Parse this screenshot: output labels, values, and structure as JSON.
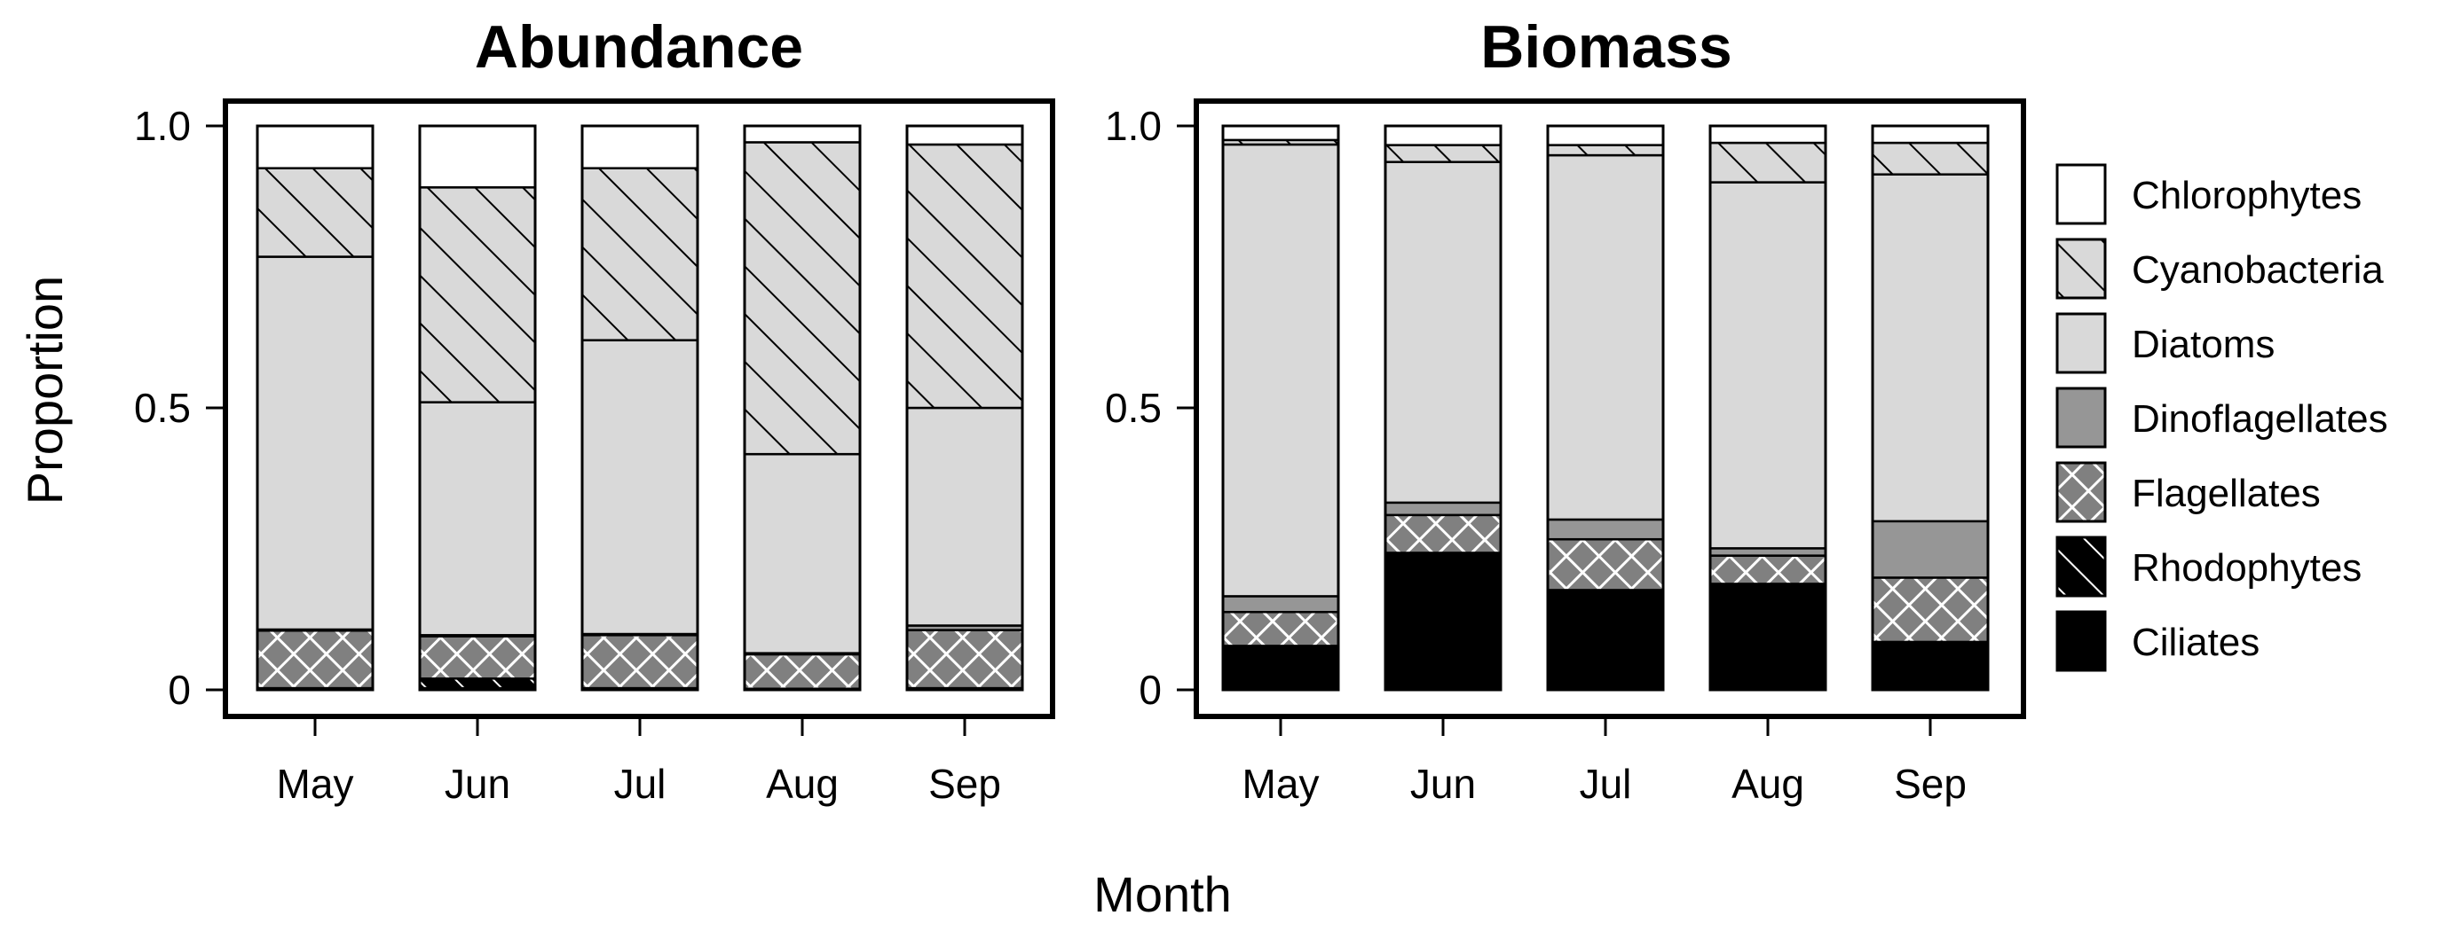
{
  "figure": {
    "ylabel": "Proportion",
    "xlabel": "Month"
  },
  "legend": {
    "position": "right",
    "items": [
      {
        "name": "Chlorophytes",
        "fill": "#ffffff",
        "pattern": "none"
      },
      {
        "name": "Cyanobacteria",
        "fill": "#d9d9d9",
        "pattern": "diagonal-hatch"
      },
      {
        "name": "Diatoms",
        "fill": "#d9d9d9",
        "pattern": "none"
      },
      {
        "name": "Dinoflagellates",
        "fill": "#969696",
        "pattern": "none"
      },
      {
        "name": "Flagellates",
        "fill": "#808080",
        "pattern": "crosshatch"
      },
      {
        "name": "Rhodophytes",
        "fill": "#000000",
        "pattern": "white-diagonal-hatch"
      },
      {
        "name": "Ciliates",
        "fill": "#000000",
        "pattern": "none"
      }
    ]
  },
  "chart_data": [
    {
      "type": "bar",
      "stacked": true,
      "title": "Abundance",
      "xlabel": "Month",
      "ylabel": "Proportion",
      "ylim": [
        0,
        1
      ],
      "yticks": [
        0,
        0.5,
        1.0
      ],
      "ytick_labels": [
        "0",
        "0.5",
        "1.0"
      ],
      "categories": [
        "May",
        "Jun",
        "Jul",
        "Aug",
        "Sep"
      ],
      "series": [
        {
          "name": "Ciliates",
          "values": [
            0.003,
            0.003,
            0.003,
            0.002,
            0.003
          ]
        },
        {
          "name": "Rhodophytes",
          "values": [
            0.0,
            0.017,
            0.0,
            0.0,
            0.0
          ]
        },
        {
          "name": "Flagellates",
          "values": [
            0.102,
            0.075,
            0.094,
            0.061,
            0.103
          ]
        },
        {
          "name": "Dinoflagellates",
          "values": [
            0.002,
            0.002,
            0.002,
            0.002,
            0.008
          ]
        },
        {
          "name": "Diatoms",
          "values": [
            0.661,
            0.413,
            0.521,
            0.353,
            0.386
          ]
        },
        {
          "name": "Cyanobacteria",
          "values": [
            0.157,
            0.381,
            0.305,
            0.553,
            0.467
          ]
        },
        {
          "name": "Chlorophytes",
          "values": [
            0.075,
            0.109,
            0.075,
            0.029,
            0.033
          ]
        }
      ]
    },
    {
      "type": "bar",
      "stacked": true,
      "title": "Biomass",
      "xlabel": "Month",
      "ylabel": "Proportion",
      "ylim": [
        0,
        1
      ],
      "yticks": [
        0,
        0.5,
        1.0
      ],
      "ytick_labels": [
        "0",
        "0.5",
        "1.0"
      ],
      "categories": [
        "May",
        "Jun",
        "Jul",
        "Aug",
        "Sep"
      ],
      "series": [
        {
          "name": "Ciliates",
          "values": [
            0.078,
            0.243,
            0.177,
            0.188,
            0.085
          ]
        },
        {
          "name": "Rhodophytes",
          "values": [
            0.0,
            0.0,
            0.0,
            0.0,
            0.0
          ]
        },
        {
          "name": "Flagellates",
          "values": [
            0.06,
            0.067,
            0.09,
            0.05,
            0.114
          ]
        },
        {
          "name": "Dinoflagellates",
          "values": [
            0.028,
            0.022,
            0.035,
            0.013,
            0.1
          ]
        },
        {
          "name": "Diatoms",
          "values": [
            0.801,
            0.604,
            0.646,
            0.649,
            0.615
          ]
        },
        {
          "name": "Cyanobacteria",
          "values": [
            0.008,
            0.03,
            0.018,
            0.07,
            0.056
          ]
        },
        {
          "name": "Chlorophytes",
          "values": [
            0.025,
            0.034,
            0.034,
            0.03,
            0.03
          ]
        }
      ]
    }
  ]
}
